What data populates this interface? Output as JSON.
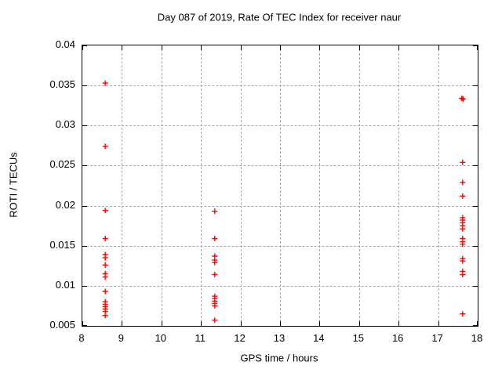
{
  "chart_data": {
    "type": "scatter",
    "title": "Day 087 of 2019, Rate Of TEC Index for receiver naur",
    "xlabel": "GPS time / hours",
    "ylabel": "ROTI / TECUs",
    "xlim": [
      8,
      18
    ],
    "ylim": [
      0.005,
      0.04
    ],
    "xticks": [
      8,
      9,
      10,
      11,
      12,
      13,
      14,
      15,
      16,
      17,
      18
    ],
    "yticks": [
      0.005,
      0.01,
      0.015,
      0.02,
      0.025,
      0.03,
      0.035,
      0.04
    ],
    "grid": true,
    "legend_position": "none",
    "marker": {
      "shape": "plus",
      "color": "#ff0000",
      "size": 7
    },
    "series": [
      {
        "name": "ROTI",
        "points": [
          [
            8.58,
            0.0353
          ],
          [
            8.58,
            0.0274
          ],
          [
            8.58,
            0.0194
          ],
          [
            8.58,
            0.0159
          ],
          [
            8.58,
            0.0139
          ],
          [
            8.58,
            0.0135
          ],
          [
            8.58,
            0.0126
          ],
          [
            8.58,
            0.0115
          ],
          [
            8.58,
            0.0111
          ],
          [
            8.58,
            0.0093
          ],
          [
            8.58,
            0.008
          ],
          [
            8.58,
            0.0077
          ],
          [
            8.58,
            0.0074
          ],
          [
            8.58,
            0.0071
          ],
          [
            8.58,
            0.0068
          ],
          [
            8.58,
            0.0063
          ],
          [
            11.35,
            0.0193
          ],
          [
            11.35,
            0.0159
          ],
          [
            11.35,
            0.0137
          ],
          [
            11.35,
            0.0132
          ],
          [
            11.35,
            0.0129
          ],
          [
            11.35,
            0.0114
          ],
          [
            11.35,
            0.0087
          ],
          [
            11.35,
            0.0084
          ],
          [
            11.35,
            0.0081
          ],
          [
            11.35,
            0.0078
          ],
          [
            11.35,
            0.0075
          ],
          [
            11.35,
            0.0057
          ],
          [
            17.6,
            0.0334
          ],
          [
            17.63,
            0.0333
          ],
          [
            17.62,
            0.0254
          ],
          [
            17.62,
            0.0229
          ],
          [
            17.62,
            0.0212
          ],
          [
            17.62,
            0.0185
          ],
          [
            17.62,
            0.0182
          ],
          [
            17.62,
            0.0179
          ],
          [
            17.62,
            0.0175
          ],
          [
            17.62,
            0.0171
          ],
          [
            17.62,
            0.0159
          ],
          [
            17.62,
            0.0155
          ],
          [
            17.62,
            0.0152
          ],
          [
            17.62,
            0.0134
          ],
          [
            17.62,
            0.0131
          ],
          [
            17.62,
            0.0118
          ],
          [
            17.62,
            0.0114
          ],
          [
            17.62,
            0.0065
          ]
        ]
      }
    ]
  },
  "colors": {
    "marker": "#ff0000",
    "grid": "#a8a8a8",
    "border": "#000000",
    "background": "#ffffff",
    "text": "#000000"
  }
}
